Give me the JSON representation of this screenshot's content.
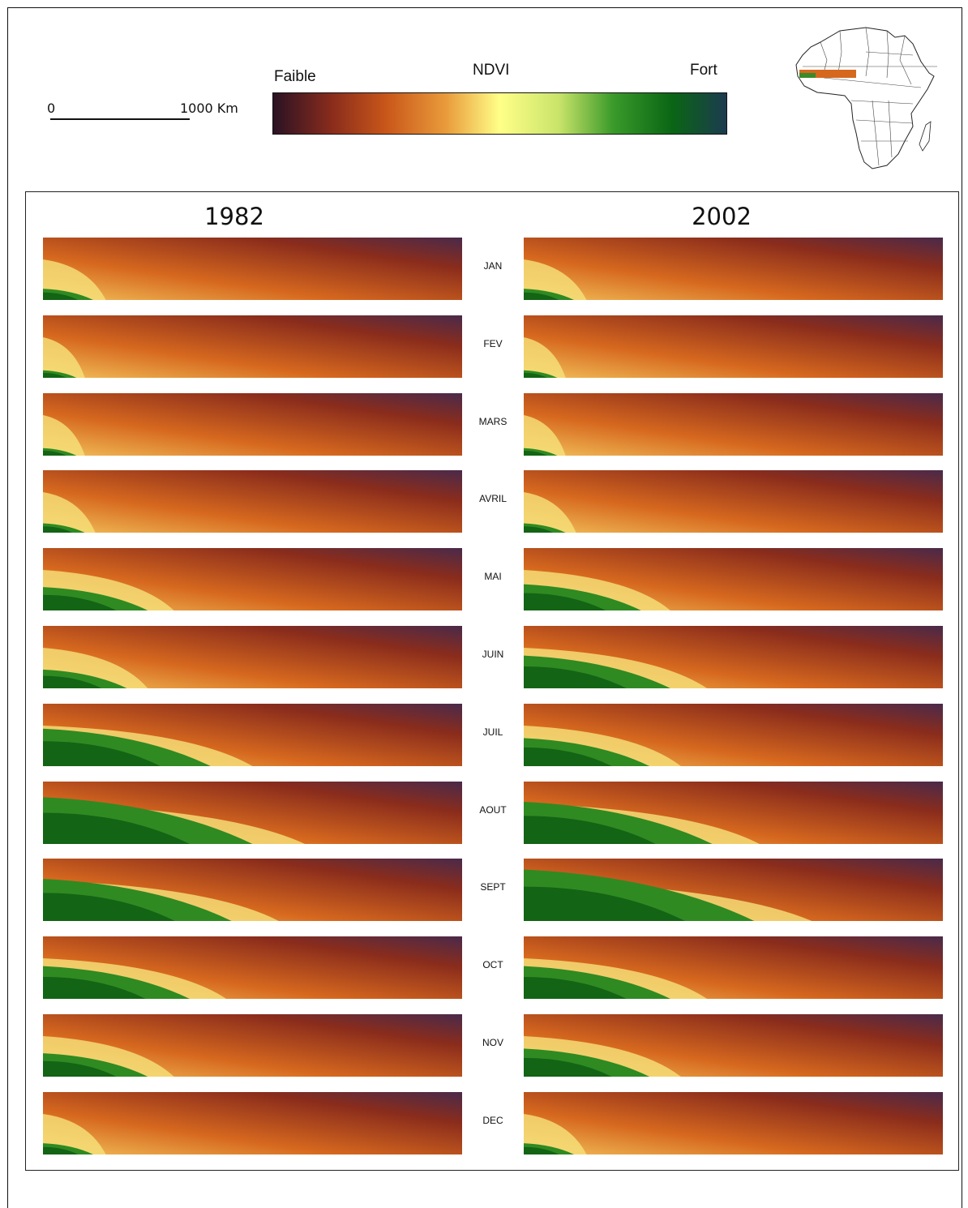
{
  "scale_bar": {
    "start_label": "0",
    "end_label": "1000 Km"
  },
  "legend": {
    "title": "NDVI",
    "low_label": "Faible",
    "high_label": "Fort",
    "ramp_colors": [
      "#2a1224",
      "#8a2c1c",
      "#c9571a",
      "#e99a3a",
      "#ffff88",
      "#c9e46a",
      "#3a9a2a",
      "#0a6614",
      "#1c3a50"
    ]
  },
  "inset_map": {
    "subject": "Africa",
    "highlight_colors": [
      "#c9571a",
      "#e8c040",
      "#3a8a2a"
    ]
  },
  "years": [
    "1982",
    "2002"
  ],
  "months": [
    "JAN",
    "FEV",
    "MARS",
    "AVRIL",
    "MAI",
    "JUIN",
    "JUIL",
    "AOUT",
    "SEPT",
    "OCT",
    "NOV",
    "DEC"
  ],
  "green_extent": [
    0.12,
    0.08,
    0.08,
    0.1,
    0.25,
    0.2,
    0.4,
    0.5,
    0.45,
    0.35,
    0.25,
    0.12
  ],
  "green_extent_2002": [
    0.12,
    0.08,
    0.08,
    0.1,
    0.28,
    0.35,
    0.3,
    0.45,
    0.55,
    0.35,
    0.3,
    0.12
  ],
  "colors": {
    "low": "#8a2c1c",
    "mid": "#d6681e",
    "dry": "#f2c05a",
    "green": "#2f8a22",
    "dark_green": "#0d5a12",
    "purple": "#4a2a4a"
  }
}
